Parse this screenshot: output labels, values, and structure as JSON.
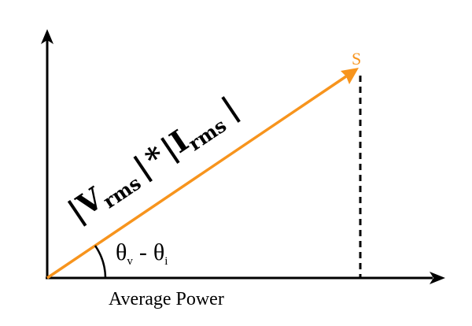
{
  "diagram": {
    "point_label": "S",
    "hypotenuse_label": {
      "bar_open": "|",
      "v": "V",
      "v_sub": "rms",
      "bar_mid": "|",
      "times": "*",
      "bar_mid2": "|",
      "i": "I",
      "i_sub": "rms",
      "bar_close": "|"
    },
    "angle_label": {
      "theta1": "θ",
      "sub1": "v",
      "minus": "-",
      "theta2": "θ",
      "sub2": "i"
    },
    "x_axis_label": "Average Power"
  },
  "colors": {
    "axis": "#000000",
    "vector": "#F7941D",
    "point_label": "#F7941D",
    "text": "#000000"
  }
}
